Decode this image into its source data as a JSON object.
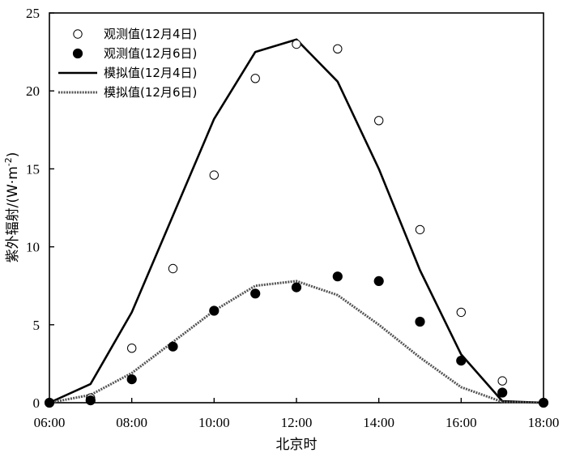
{
  "chart_data": {
    "type": "line",
    "xlabel": "北京时",
    "ylabel_main": "紫外辐射/(W·m",
    "ylabel_sup": "-2",
    "ylabel_tail": ")",
    "x_ticks": [
      "06:00",
      "08:00",
      "10:00",
      "12:00",
      "14:00",
      "16:00",
      "18:00"
    ],
    "y_ticks": [
      "0",
      "5",
      "10",
      "15",
      "20",
      "25"
    ],
    "xlim": [
      6,
      18
    ],
    "ylim": [
      0,
      25
    ],
    "grid": false,
    "legend_position": "top-left",
    "series": [
      {
        "name": "观测值(12月4日)",
        "style": "open-circle",
        "color": "#000000",
        "x": [
          6,
          7,
          8,
          9,
          10,
          11,
          12,
          13,
          14,
          15,
          16,
          17,
          18
        ],
        "y": [
          0,
          0.3,
          3.5,
          8.6,
          14.6,
          20.8,
          23.0,
          22.7,
          18.1,
          11.1,
          5.8,
          1.4,
          0
        ]
      },
      {
        "name": "观测值(12月6日)",
        "style": "filled-circle",
        "color": "#000000",
        "x": [
          6,
          7,
          8,
          9,
          10,
          11,
          12,
          13,
          14,
          15,
          16,
          17,
          18
        ],
        "y": [
          0,
          0.15,
          1.5,
          3.6,
          5.9,
          7.0,
          7.4,
          8.1,
          7.8,
          5.2,
          2.7,
          0.65,
          0
        ]
      },
      {
        "name": "模拟值(12月4日)",
        "style": "solid-line",
        "color": "#000000",
        "x": [
          6,
          7,
          8,
          9,
          10,
          11,
          12,
          13,
          14,
          15,
          16,
          17,
          18
        ],
        "y": [
          0,
          1.2,
          5.8,
          12.0,
          18.2,
          22.5,
          23.3,
          20.6,
          15.0,
          8.5,
          3.1,
          0.1,
          0
        ]
      },
      {
        "name": "模拟值(12月6日)",
        "style": "dotted-line",
        "color": "#555555",
        "x": [
          6,
          7,
          8,
          9,
          10,
          11,
          12,
          13,
          14,
          15,
          16,
          17,
          18
        ],
        "y": [
          0,
          0.5,
          1.9,
          3.9,
          5.9,
          7.5,
          7.8,
          6.9,
          5.0,
          2.9,
          1.0,
          0.05,
          0
        ]
      }
    ]
  }
}
